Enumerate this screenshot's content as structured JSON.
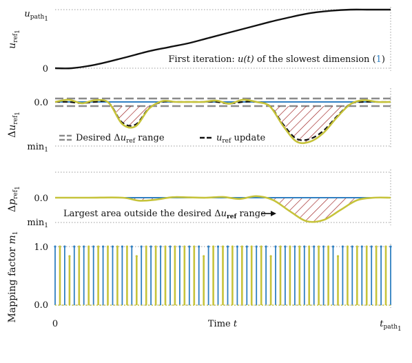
{
  "chart_data": [
    {
      "type": "line",
      "ylabel": "u_ref_1",
      "yticks": [
        "u_path_1",
        "0"
      ],
      "series": [
        {
          "x": [
            0,
            0.05,
            0.12,
            0.2,
            0.28,
            0.34,
            0.4,
            0.46,
            0.52,
            0.58,
            0.64,
            0.7,
            0.76,
            0.82,
            0.88,
            0.93,
            0.97,
            1.0
          ],
          "y": [
            0,
            0.0,
            0.06,
            0.17,
            0.29,
            0.36,
            0.43,
            0.52,
            0.61,
            0.7,
            0.79,
            0.87,
            0.94,
            0.98,
            1.0,
            1.0,
            1.0,
            1.0
          ]
        }
      ],
      "annotation": "First iteration: u(t) of the slowest dimension (1)"
    },
    {
      "type": "line",
      "ylabel": "Δu_ref_1",
      "yticks": [
        "0.0",
        "min_1"
      ],
      "desired_range": [
        -0.12,
        0.1
      ],
      "series": [
        {
          "x": [
            0,
            0.04,
            0.08,
            0.12,
            0.16,
            0.2,
            0.24,
            0.28,
            0.32,
            0.36,
            0.4,
            0.44,
            0.48,
            0.52,
            0.56,
            0.6,
            0.64,
            0.68,
            0.72,
            0.76,
            0.8,
            0.84,
            0.88,
            0.92,
            0.96,
            1.0
          ],
          "y": [
            0,
            0.05,
            -0.03,
            0.04,
            -0.02,
            -0.5,
            -0.55,
            -0.15,
            0.02,
            0,
            0,
            0,
            0.03,
            -0.04,
            0.05,
            0,
            -0.1,
            -0.55,
            -0.9,
            -0.9,
            -0.7,
            -0.35,
            -0.05,
            0.04,
            0,
            0
          ]
        }
      ],
      "legend": [
        {
          "style": "double-dashed",
          "text_parts": [
            "Desired Δ",
            "u",
            "ref",
            " range"
          ]
        },
        {
          "style": "dashed",
          "text_parts": [
            "u",
            "ref",
            " update"
          ]
        }
      ]
    },
    {
      "type": "line",
      "ylabel": "Δp_ref_1",
      "yticks": [
        "0.0",
        "min_1"
      ],
      "series": [
        {
          "x": [
            0,
            0.1,
            0.2,
            0.25,
            0.3,
            0.35,
            0.4,
            0.45,
            0.5,
            0.55,
            0.6,
            0.65,
            0.7,
            0.75,
            0.8,
            0.85,
            0.9,
            0.95,
            1.0
          ],
          "y": [
            0,
            0,
            0,
            -0.12,
            -0.08,
            0.02,
            0.01,
            0,
            0.03,
            -0.05,
            0.06,
            -0.1,
            -0.55,
            -0.95,
            -0.9,
            -0.5,
            -0.1,
            0,
            0
          ]
        }
      ],
      "annotation": [
        "Largest area outside the desired Δ",
        "u",
        "ref",
        " range"
      ]
    },
    {
      "type": "stem",
      "ylabel": "Mapping factor m_1",
      "yticks": [
        "1.0",
        "0.0"
      ],
      "ylim": [
        0,
        1
      ],
      "xlabel": "Time t",
      "xticks": [
        "0",
        "t_path_1"
      ]
    }
  ],
  "labels": {
    "p1_ylabel_main": "u",
    "p1_ylabel_sub": "ref",
    "p1_ylabel_subsub": "1",
    "p1_ytick_top_main": "u",
    "p1_ytick_top_sub": "path",
    "p1_ytick_top_subsub": "1",
    "p1_ytick_bottom": "0",
    "p1_note_a": "First iteration: ",
    "p1_note_b": "u(t)",
    "p1_note_c": " of the slowest dimension (",
    "p1_note_d": "1",
    "p1_note_e": ")",
    "p2_ylabel_delta": "Δ",
    "p2_ylabel_main": "u",
    "p2_ylabel_sub": "ref",
    "p2_ylabel_subsub": "1",
    "p2_ytick_top": "0.0",
    "p2_ytick_bottom_main": "min",
    "p2_ytick_bottom_sub": "1",
    "p2_legend1_a": "Desired Δ",
    "p2_legend1_b": "u",
    "p2_legend1_c": "ref",
    "p2_legend1_d": " range",
    "p2_legend2_b": "u",
    "p2_legend2_c": "ref",
    "p2_legend2_d": " update",
    "p3_ylabel_delta": "Δ",
    "p3_ylabel_main": "p",
    "p3_ylabel_sub": "ref",
    "p3_ylabel_subsub": "1",
    "p3_ytick_top": "0.0",
    "p3_ytick_bottom_main": "min",
    "p3_ytick_bottom_sub": "1",
    "p3_note_a": "Largest area outside the desired Δ",
    "p3_note_b": "u",
    "p3_note_c": "ref",
    "p3_note_d": " range",
    "p4_ylabel_main": "Mapping factor ",
    "p4_ylabel_m": "m",
    "p4_ylabel_sub": "1",
    "p4_ytick_top": "1.0",
    "p4_ytick_bottom": "0.0",
    "x_tick_left": "0",
    "x_tick_right_main": "t",
    "x_tick_right_sub": "path",
    "x_tick_right_subsub": "1",
    "x_label_a": "Time ",
    "x_label_b": "t"
  },
  "colors": {
    "black": "#111111",
    "blue": "#2f7fc1",
    "olive": "#c6c33a",
    "hatch": "#9b1c1c",
    "grid": "#9a9a9a",
    "range": "#8a8a8a"
  }
}
